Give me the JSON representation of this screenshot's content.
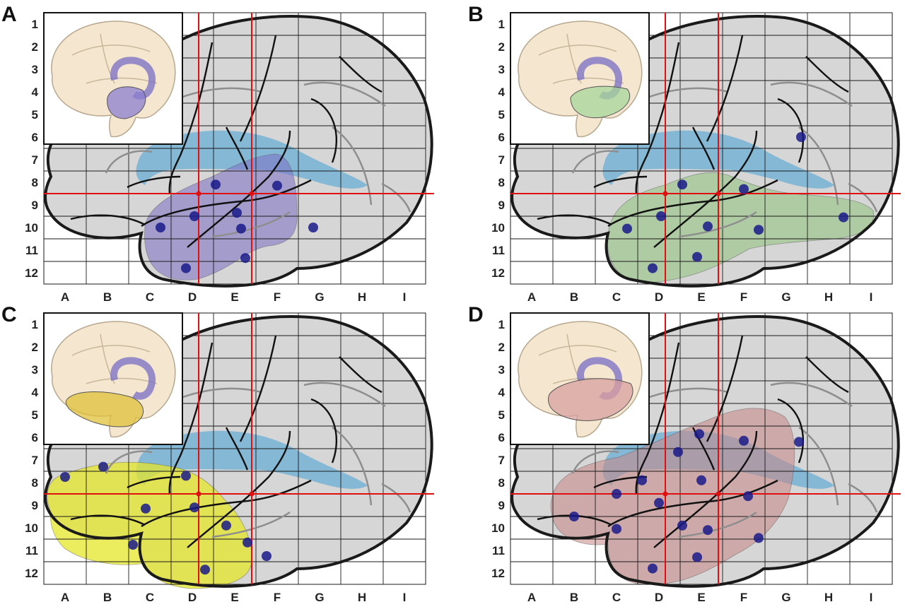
{
  "panels": [
    {
      "letter": "A",
      "region_color": "#7b6fc4",
      "region_opacity": 0.55,
      "insert_color": "#8b7fd0",
      "highlight": "temporal",
      "electrodes": [
        [
          4.05,
          8.1
        ],
        [
          3.55,
          9.5
        ],
        [
          4.55,
          9.35
        ],
        [
          5.5,
          8.15
        ],
        [
          4.65,
          10.05
        ],
        [
          2.75,
          10.0
        ],
        [
          6.35,
          10.0
        ],
        [
          3.35,
          11.8
        ],
        [
          4.75,
          11.35
        ]
      ]
    },
    {
      "letter": "B",
      "region_color": "#8fc27a",
      "region_opacity": 0.55,
      "insert_color": "#a7d59a",
      "highlight": "temporal-wide",
      "electrodes": [
        [
          6.85,
          6.0
        ],
        [
          4.05,
          8.1
        ],
        [
          5.5,
          8.3
        ],
        [
          3.55,
          9.5
        ],
        [
          4.65,
          9.95
        ],
        [
          7.85,
          9.55
        ],
        [
          2.75,
          10.05
        ],
        [
          5.85,
          10.1
        ],
        [
          3.35,
          11.8
        ],
        [
          4.4,
          11.3
        ]
      ]
    },
    {
      "letter": "C",
      "region_color": "#e6e62a",
      "region_opacity": 0.75,
      "insert_color": "#e0c03a",
      "highlight": "frontal-temporal",
      "electrodes": [
        [
          0.5,
          7.75
        ],
        [
          1.4,
          7.3
        ],
        [
          3.35,
          7.7
        ],
        [
          3.55,
          9.1
        ],
        [
          2.4,
          9.15
        ],
        [
          4.3,
          9.9
        ],
        [
          4.8,
          10.65
        ],
        [
          3.8,
          11.85
        ],
        [
          2.1,
          10.75
        ],
        [
          5.25,
          11.25
        ]
      ]
    },
    {
      "letter": "D",
      "region_color": "#c98585",
      "region_opacity": 0.55,
      "insert_color": "#d9a0a0",
      "highlight": "broad",
      "electrodes": [
        [
          1.5,
          9.5
        ],
        [
          2.5,
          8.5
        ],
        [
          3.1,
          7.9
        ],
        [
          3.5,
          8.9
        ],
        [
          2.5,
          10.05
        ],
        [
          3.95,
          6.65
        ],
        [
          4.45,
          5.85
        ],
        [
          5.5,
          6.15
        ],
        [
          6.8,
          6.2
        ],
        [
          4.5,
          7.9
        ],
        [
          5.6,
          8.6
        ],
        [
          4.05,
          9.9
        ],
        [
          4.65,
          10.1
        ],
        [
          5.85,
          10.45
        ],
        [
          4.4,
          11.3
        ],
        [
          3.35,
          11.8
        ]
      ]
    }
  ],
  "row_labels": [
    "1",
    "2",
    "3",
    "4",
    "5",
    "6",
    "7",
    "8",
    "9",
    "10",
    "11",
    "12"
  ],
  "col_labels": [
    "A",
    "B",
    "C",
    "D",
    "E",
    "F",
    "G",
    "H",
    "I"
  ],
  "colors": {
    "brain_fill": "#d6d6d6",
    "grid_line": "#1a1a1a",
    "red_line": "#e01010",
    "blue_region": "#6aaed4",
    "electrode": "#1a1a8a",
    "insert_brain": "#f4e6cf"
  }
}
